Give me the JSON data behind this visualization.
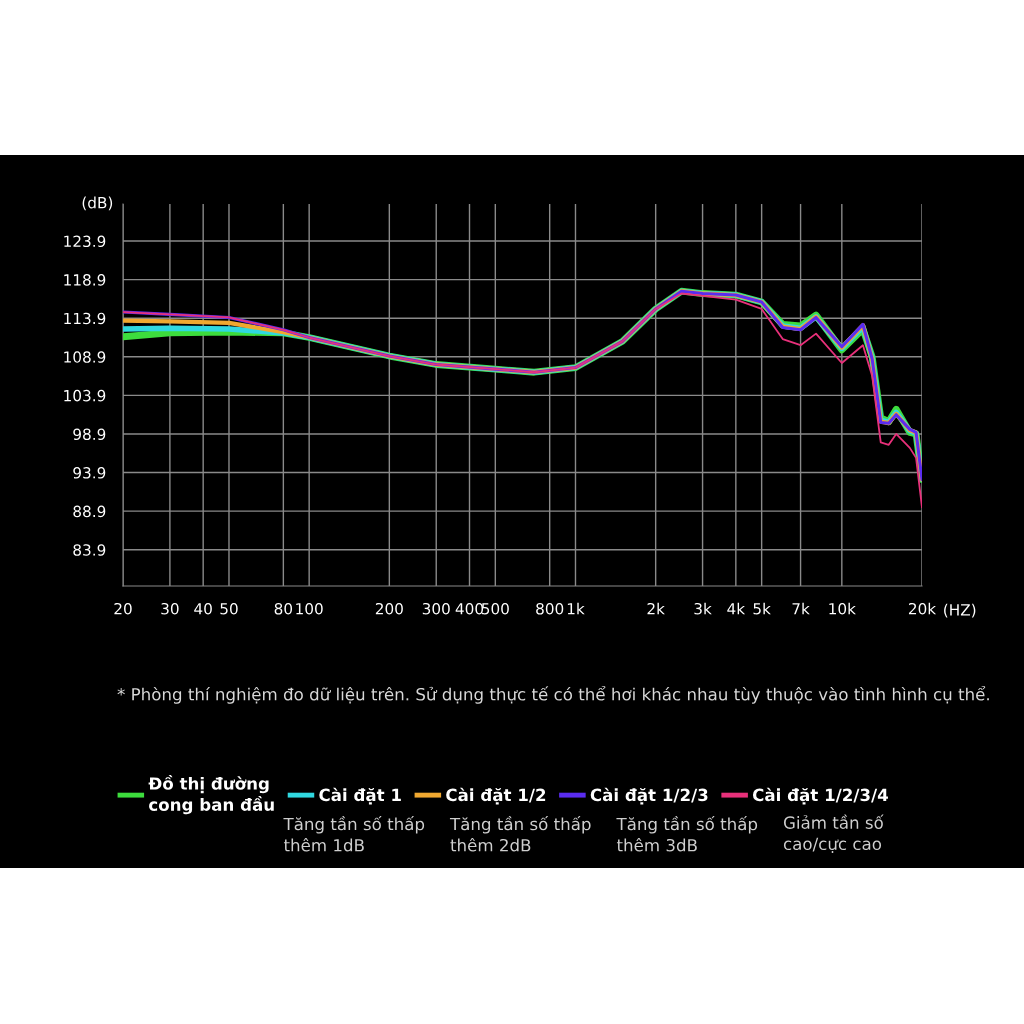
{
  "chart_data": {
    "type": "line",
    "ylabel": "(dB)",
    "xlabel": "(HZ)",
    "log": "x",
    "grid": true,
    "legend": "bottom",
    "marker": "none",
    "line_style": "solid",
    "xlim": [
      20,
      20000
    ],
    "ylim": [
      79.2,
      128.7
    ],
    "xticks": [
      20,
      30,
      40,
      50,
      80,
      100,
      200,
      300,
      400,
      500,
      800,
      {
        "value": 1000,
        "label": "1k"
      },
      {
        "value": 2000,
        "label": "2k"
      },
      {
        "value": 3000,
        "label": "3k"
      },
      {
        "value": 4000,
        "label": "4k"
      },
      {
        "value": 5000,
        "label": "5k"
      },
      {
        "value": 7000,
        "label": "7k"
      },
      {
        "value": 10000,
        "label": "10k"
      },
      {
        "value": 20000,
        "label": "20k"
      }
    ],
    "yticks": [
      83.9,
      88.9,
      93.9,
      98.9,
      103.9,
      108.9,
      113.9,
      118.9,
      123.9
    ],
    "x": [
      20,
      30,
      50,
      80,
      100,
      200,
      300,
      500,
      700,
      1000,
      1500,
      2000,
      2500,
      3000,
      4000,
      5000,
      6000,
      7000,
      8000,
      10000,
      12000,
      13000,
      14000,
      15000,
      16000,
      18000,
      19000,
      20000
    ],
    "series": [
      {
        "name": "Đồ thị đường\ncong ban đầu",
        "color": "#3ddc3d",
        "values": [
          111.5,
          112.0,
          112.1,
          112.0,
          111.4,
          109.0,
          107.9,
          107.3,
          106.9,
          107.5,
          110.9,
          115.1,
          117.4,
          117.1,
          116.9,
          116.0,
          113.1,
          112.9,
          114.3,
          109.8,
          112.5,
          108.9,
          101.0,
          100.5,
          102.1,
          99.1,
          98.9,
          93.0
        ]
      },
      {
        "name": "Cài đặt 1",
        "color": "#30d8e0",
        "values": [
          112.5,
          112.6,
          112.5,
          112.0,
          111.4,
          109.0,
          107.9,
          107.3,
          106.9,
          107.5,
          110.9,
          115.1,
          117.4,
          117.1,
          116.9,
          116.0,
          112.9,
          112.6,
          114.1,
          110.0,
          112.8,
          108.7,
          100.7,
          100.4,
          101.7,
          99.3,
          99.0,
          93.0
        ]
      },
      {
        "name": "Cài đặt 1/2",
        "color": "#f0a830",
        "values": [
          113.6,
          113.5,
          113.3,
          112.1,
          111.4,
          109.0,
          107.9,
          107.3,
          106.9,
          107.5,
          110.9,
          115.1,
          117.4,
          117.1,
          116.9,
          116.0,
          112.8,
          112.5,
          114.1,
          110.1,
          113.0,
          108.6,
          100.5,
          100.3,
          101.5,
          99.4,
          99.1,
          93.0
        ]
      },
      {
        "name": "Cài đặt 1/2/3",
        "color": "#5a2cf0",
        "values": [
          114.7,
          114.4,
          114.0,
          112.4,
          111.4,
          109.0,
          107.9,
          107.3,
          106.9,
          107.5,
          110.9,
          115.1,
          117.4,
          117.1,
          116.9,
          116.0,
          112.7,
          112.4,
          114.0,
          110.2,
          113.1,
          108.6,
          100.4,
          100.3,
          101.4,
          99.5,
          99.1,
          93.0
        ]
      },
      {
        "name": "Cài đặt 1/2/3/4",
        "color": "#e8307a",
        "values": [
          114.7,
          114.4,
          114.0,
          112.4,
          111.4,
          109.0,
          107.9,
          107.3,
          106.9,
          107.5,
          110.9,
          115.1,
          117.1,
          116.8,
          116.3,
          115.1,
          111.2,
          110.4,
          111.9,
          108.1,
          110.4,
          106.4,
          97.8,
          97.5,
          98.9,
          97.1,
          95.8,
          89.4
        ]
      }
    ],
    "annotations": [
      "* Phòng thí nghiệm đo dữ liệu trên. Sử dụng thực tế có thể hơi khác nhau tùy thuộc vào tình hình cụ thể.",
      "Tăng tần số thấp\nthêm 1dB",
      "Tăng tần số thấp\nthêm 2dB",
      "Tăng tần số thấp\nthêm 3dB",
      "Giảm tần số\ncao/cực cao"
    ]
  }
}
